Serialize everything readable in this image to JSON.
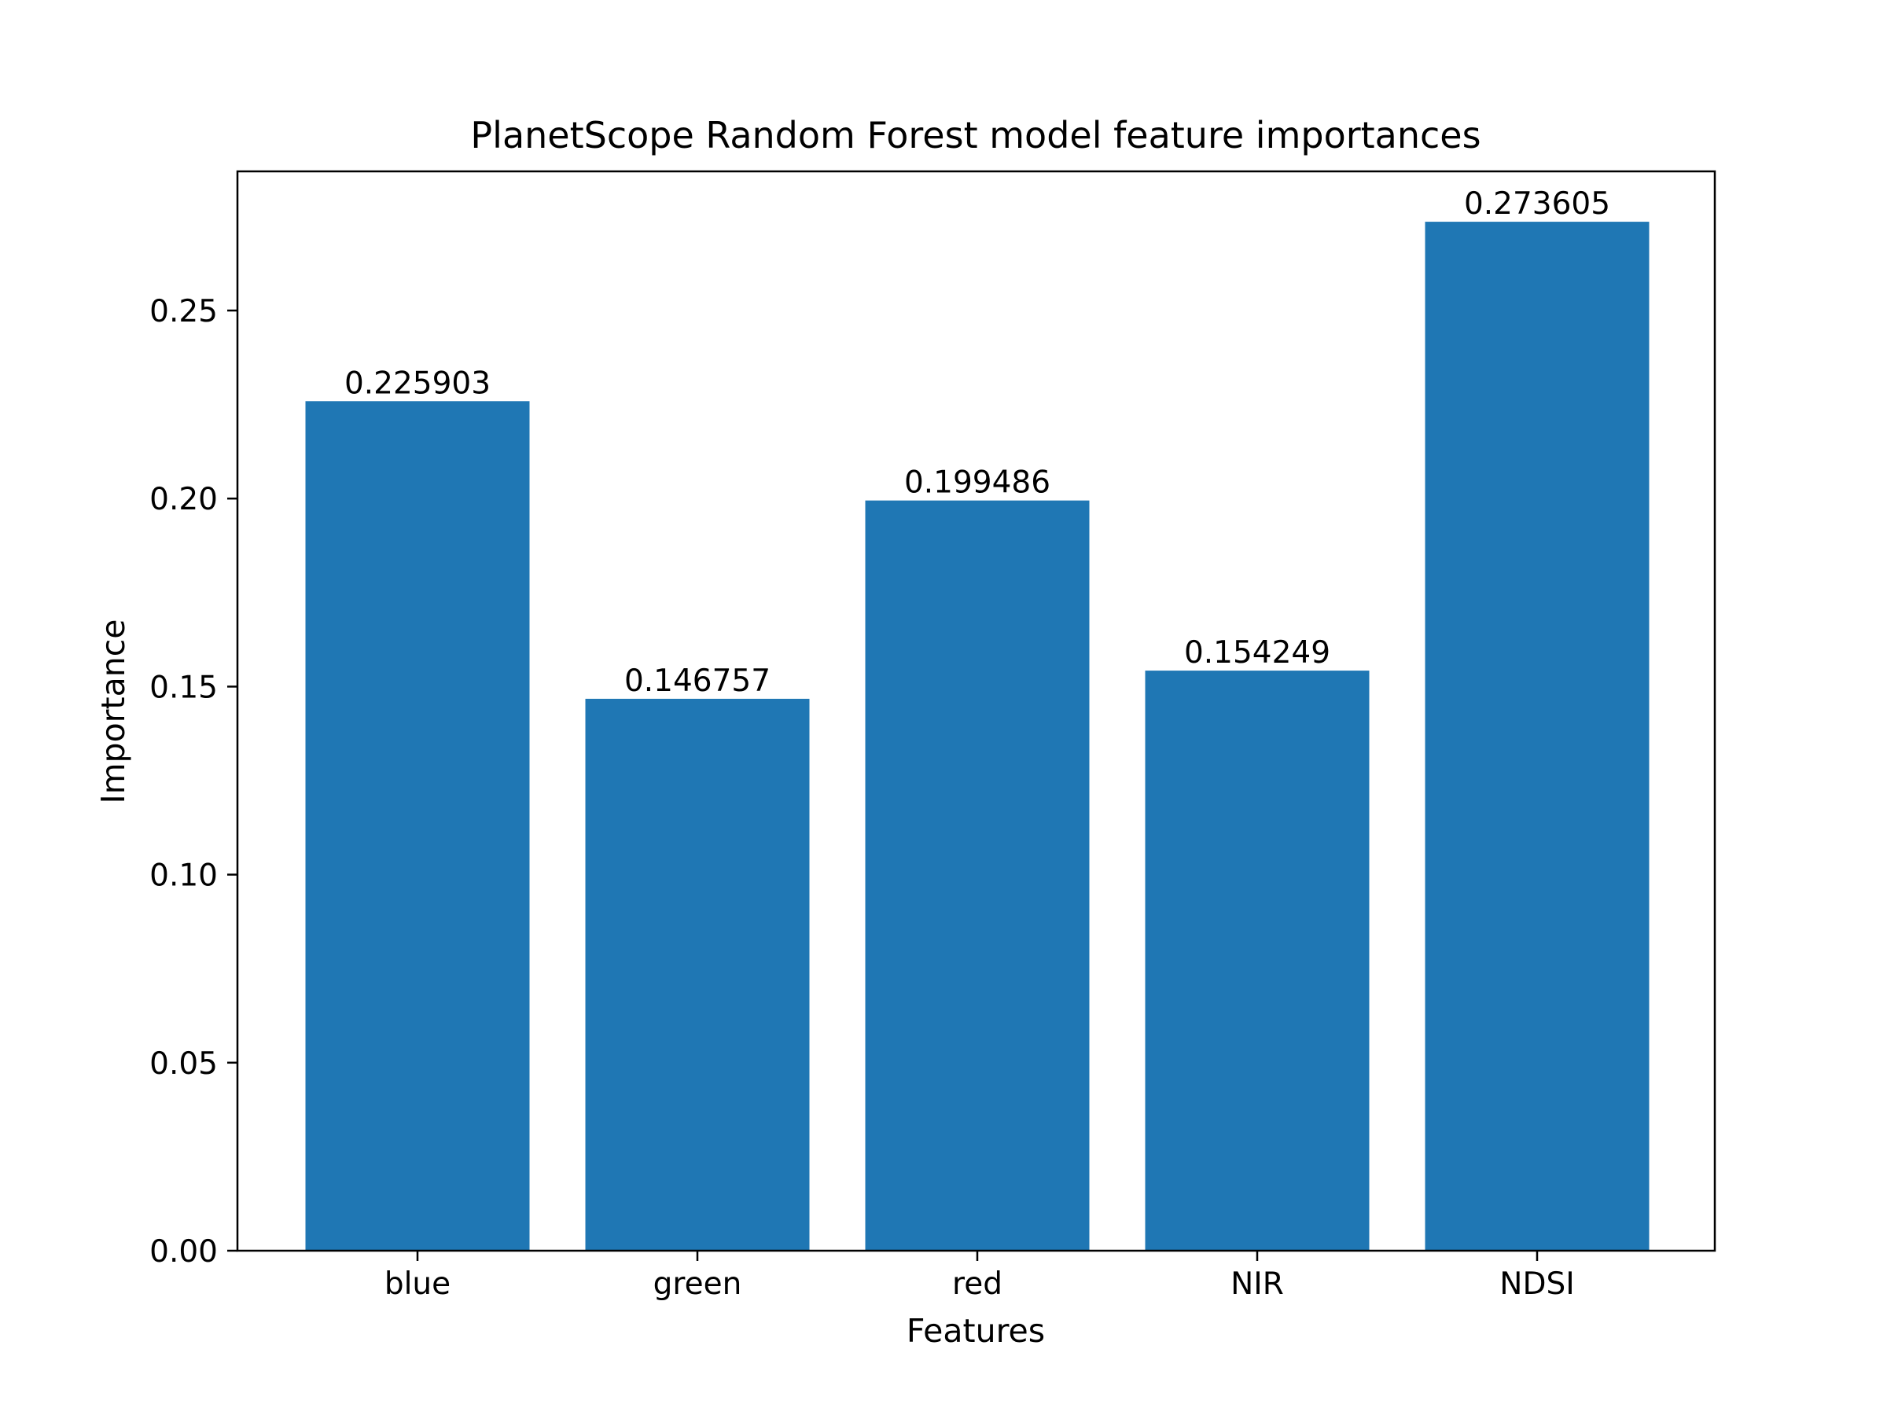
{
  "chart_data": {
    "type": "bar",
    "title": "PlanetScope Random Forest model feature importances",
    "xlabel": "Features",
    "ylabel": "Importance",
    "categories": [
      "blue",
      "green",
      "red",
      "NIR",
      "NDSI"
    ],
    "values": [
      0.225903,
      0.146757,
      0.199486,
      0.154249,
      0.273605
    ],
    "data_labels": [
      "0.225903",
      "0.146757",
      "0.199486",
      "0.154249",
      "0.273605"
    ],
    "yticks": [
      "0.00",
      "0.05",
      "0.10",
      "0.15",
      "0.20",
      "0.25"
    ],
    "ylim": [
      0,
      0.287
    ],
    "grid": false,
    "legend": "none",
    "bar_color": "#1f77b4"
  }
}
